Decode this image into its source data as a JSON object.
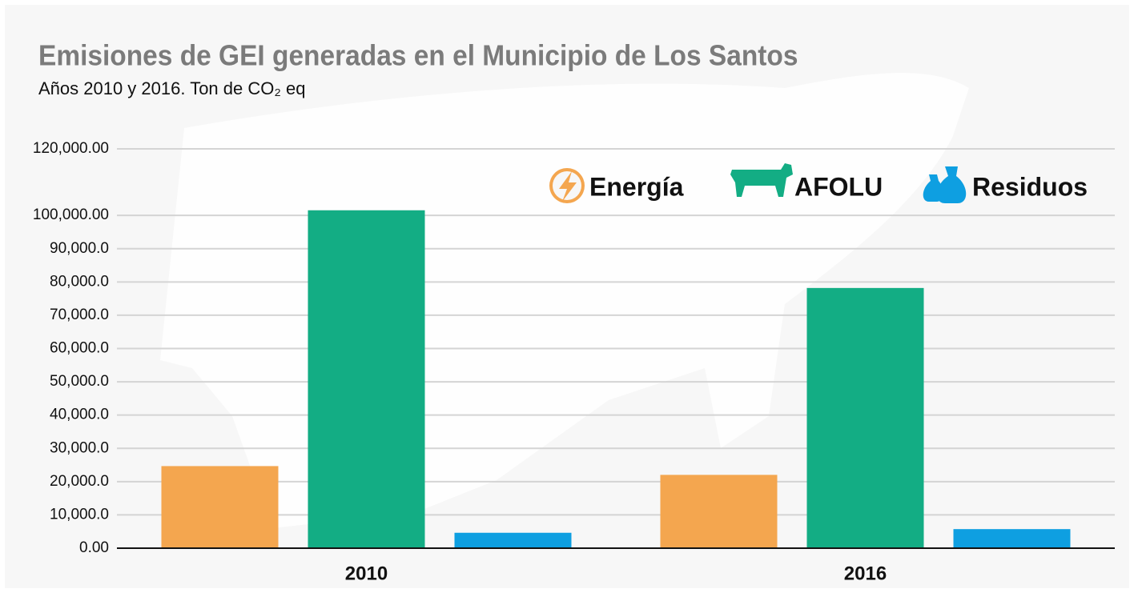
{
  "chart_data": {
    "type": "bar",
    "title": "Emisiones de GEI generadas en el Municipio de Los Santos",
    "subtitle": "Años 2010 y 2016. Ton de CO₂ eq",
    "categories": [
      "2010",
      "2016"
    ],
    "series": [
      {
        "name": "Energía",
        "color": "#f4a64f",
        "values": [
          24670,
          22030
        ]
      },
      {
        "name": "AFOLU",
        "color": "#13ad84",
        "values": [
          101540,
          78190
        ]
      },
      {
        "name": "Residuos",
        "color": "#0e9fe1",
        "values": [
          4630,
          5730
        ]
      }
    ],
    "ylim": [
      0,
      120000
    ],
    "yticks": [
      {
        "value": 0,
        "label": "0.00"
      },
      {
        "value": 10000,
        "label": "10,000.0"
      },
      {
        "value": 20000,
        "label": "20,000.0"
      },
      {
        "value": 30000,
        "label": "30,000.0"
      },
      {
        "value": 40000,
        "label": "40,000.0"
      },
      {
        "value": 50000,
        "label": "50,000.0"
      },
      {
        "value": 60000,
        "label": "60,000.0"
      },
      {
        "value": 70000,
        "label": "70,000.0"
      },
      {
        "value": 80000,
        "label": "80,000.0"
      },
      {
        "value": 90000,
        "label": "90,000.0"
      },
      {
        "value": 100000,
        "label": "100,000.00"
      },
      {
        "value": 120000,
        "label": "120,000.00"
      }
    ],
    "grid": true,
    "legend": "top-right"
  }
}
